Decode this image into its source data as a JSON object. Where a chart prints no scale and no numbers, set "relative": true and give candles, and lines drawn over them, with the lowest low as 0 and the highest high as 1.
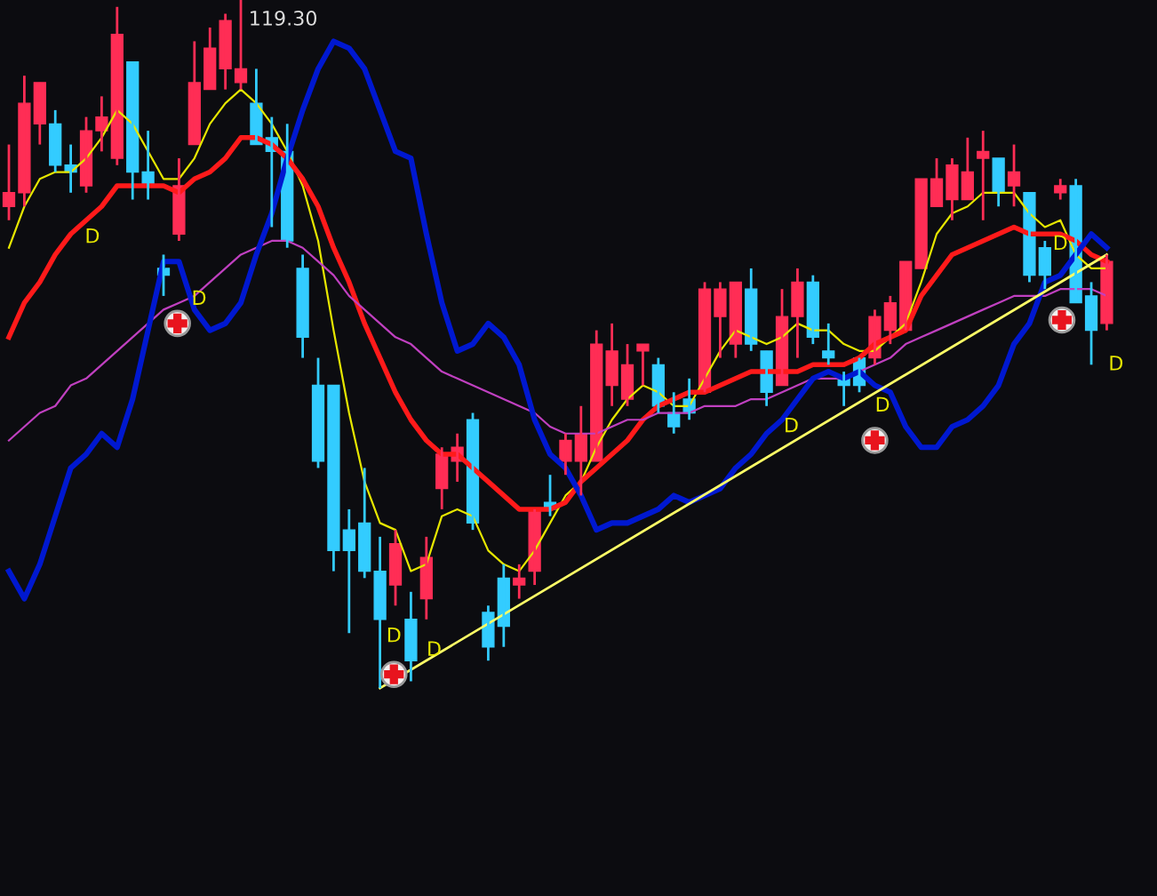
{
  "chart_data": {
    "type": "candlestick",
    "relative": true,
    "categories": [
      null,
      null,
      null,
      null,
      null,
      null,
      null,
      null,
      null,
      null,
      null,
      null,
      null,
      null,
      null,
      null,
      null,
      null,
      null,
      null,
      null,
      null,
      null,
      null,
      null,
      null,
      null,
      null,
      null,
      null,
      null,
      null,
      null,
      null,
      null,
      null,
      null,
      null,
      null,
      null,
      null,
      null,
      null,
      null,
      null,
      null,
      null,
      null,
      null,
      null,
      null,
      null,
      null,
      null,
      null,
      null,
      null,
      null,
      null,
      null,
      null,
      null,
      null,
      null,
      null,
      null,
      null,
      null,
      null,
      null,
      null,
      null
    ],
    "ohlc": [
      [
        0.7,
        0.79,
        0.68,
        0.72
      ],
      [
        0.72,
        0.89,
        0.7,
        0.85
      ],
      [
        0.82,
        0.88,
        0.79,
        0.88
      ],
      [
        0.82,
        0.84,
        0.75,
        0.76
      ],
      [
        0.76,
        0.79,
        0.72,
        0.75
      ],
      [
        0.73,
        0.83,
        0.72,
        0.81
      ],
      [
        0.81,
        0.86,
        0.78,
        0.83
      ],
      [
        0.77,
        0.99,
        0.76,
        0.95
      ],
      [
        0.91,
        0.91,
        0.71,
        0.75
      ],
      [
        0.75,
        0.81,
        0.71,
        0.73
      ],
      [
        0.61,
        0.63,
        0.57,
        0.6
      ],
      [
        0.66,
        0.77,
        0.65,
        0.73
      ],
      [
        0.79,
        0.94,
        0.79,
        0.88
      ],
      [
        0.87,
        0.96,
        0.87,
        0.93
      ],
      [
        0.9,
        0.98,
        0.87,
        0.97
      ],
      [
        0.88,
        1,
        0.87,
        0.9
      ],
      [
        0.85,
        0.9,
        0.79,
        0.79
      ],
      [
        0.8,
        0.83,
        0.67,
        0.78
      ],
      [
        0.78,
        0.82,
        0.64,
        0.65
      ],
      [
        0.61,
        0.63,
        0.48,
        0.51
      ],
      [
        0.44,
        0.48,
        0.32,
        0.33
      ],
      [
        0.44,
        0.44,
        0.17,
        0.2
      ],
      [
        0.23,
        0.26,
        0.08,
        0.2
      ],
      [
        0.24,
        0.32,
        0.16,
        0.17
      ],
      [
        0.17,
        0.22,
        0,
        0.1
      ],
      [
        0.15,
        0.23,
        0.12,
        0.21
      ],
      [
        0.1,
        0.14,
        0.01,
        0.04
      ],
      [
        0.13,
        0.22,
        0.1,
        0.19
      ],
      [
        0.29,
        0.35,
        0.26,
        0.34
      ],
      [
        0.33,
        0.37,
        0.3,
        0.35
      ],
      [
        0.39,
        0.4,
        0.23,
        0.24
      ],
      [
        0.11,
        0.12,
        0.04,
        0.06
      ],
      [
        0.16,
        0.18,
        0.06,
        0.09
      ],
      [
        0.15,
        0.18,
        0.13,
        0.16
      ],
      [
        0.17,
        0.26,
        0.15,
        0.26
      ],
      [
        0.27,
        0.31,
        0.25,
        0.26
      ],
      [
        0.33,
        0.37,
        0.31,
        0.36
      ],
      [
        0.33,
        0.41,
        0.28,
        0.37
      ],
      [
        0.33,
        0.52,
        0.33,
        0.5
      ],
      [
        0.44,
        0.53,
        0.41,
        0.49
      ],
      [
        0.42,
        0.5,
        0.41,
        0.47
      ],
      [
        0.49,
        0.5,
        0.44,
        0.5
      ],
      [
        0.47,
        0.48,
        0.4,
        0.41
      ],
      [
        0.4,
        0.43,
        0.37,
        0.38
      ],
      [
        0.42,
        0.45,
        0.39,
        0.4
      ],
      [
        0.43,
        0.59,
        0.43,
        0.58
      ],
      [
        0.54,
        0.59,
        0.48,
        0.58
      ],
      [
        0.5,
        0.59,
        0.48,
        0.59
      ],
      [
        0.58,
        0.61,
        0.49,
        0.5
      ],
      [
        0.49,
        0.49,
        0.41,
        0.43
      ],
      [
        0.44,
        0.58,
        0.44,
        0.54
      ],
      [
        0.54,
        0.61,
        0.48,
        0.59
      ],
      [
        0.59,
        0.6,
        0.5,
        0.51
      ],
      [
        0.49,
        0.53,
        0.47,
        0.48
      ],
      [
        0.45,
        0.46,
        0.41,
        0.44
      ],
      [
        0.48,
        0.48,
        0.43,
        0.44
      ],
      [
        0.48,
        0.55,
        0.47,
        0.54
      ],
      [
        0.52,
        0.57,
        0.5,
        0.56
      ],
      [
        0.52,
        0.62,
        0.52,
        0.62
      ],
      [
        0.61,
        0.74,
        0.61,
        0.74
      ],
      [
        0.7,
        0.77,
        0.7,
        0.74
      ],
      [
        0.71,
        0.77,
        0.68,
        0.76
      ],
      [
        0.71,
        0.8,
        0.71,
        0.75
      ],
      [
        0.77,
        0.81,
        0.68,
        0.78
      ],
      [
        0.77,
        0.77,
        0.7,
        0.72
      ],
      [
        0.73,
        0.79,
        0.7,
        0.75
      ],
      [
        0.72,
        0.72,
        0.59,
        0.6
      ],
      [
        0.64,
        0.65,
        0.58,
        0.6
      ],
      [
        0.72,
        0.74,
        0.71,
        0.73
      ],
      [
        0.73,
        0.74,
        0.56,
        0.56
      ],
      [
        0.57,
        0.59,
        0.47,
        0.52
      ],
      [
        0.53,
        0.63,
        0.52,
        0.62
      ]
    ],
    "series": [
      {
        "type": "line",
        "color": "#e6e600",
        "values": [
          0.64,
          0.7,
          0.74,
          0.75,
          0.75,
          0.77,
          0.8,
          0.84,
          0.82,
          0.78,
          0.74,
          0.74,
          0.77,
          0.82,
          0.85,
          0.87,
          0.85,
          0.82,
          0.78,
          0.73,
          0.65,
          0.52,
          0.4,
          0.3,
          0.24,
          0.23,
          0.17,
          0.18,
          0.25,
          0.26,
          0.25,
          0.2,
          0.18,
          0.17,
          0.2,
          0.24,
          0.28,
          0.3,
          0.35,
          0.39,
          0.42,
          0.44,
          0.43,
          0.41,
          0.41,
          0.45,
          0.49,
          0.52,
          0.51,
          0.5,
          0.51,
          0.53,
          0.52,
          0.52,
          0.5,
          0.49,
          0.49,
          0.51,
          0.53,
          0.59,
          0.66,
          0.69,
          0.7,
          0.72,
          0.72,
          0.72,
          0.69,
          0.67,
          0.68,
          0.63,
          0.61,
          0.61
        ]
      },
      {
        "type": "line",
        "color": "#ff1a1a",
        "values": [
          0.51,
          0.56,
          0.59,
          0.63,
          0.66,
          0.68,
          0.7,
          0.73,
          0.73,
          0.73,
          0.73,
          0.72,
          0.74,
          0.75,
          0.77,
          0.8,
          0.8,
          0.79,
          0.77,
          0.74,
          0.7,
          0.64,
          0.59,
          0.53,
          0.48,
          0.43,
          0.39,
          0.36,
          0.34,
          0.34,
          0.32,
          0.3,
          0.28,
          0.26,
          0.26,
          0.26,
          0.27,
          0.3,
          0.32,
          0.34,
          0.36,
          0.39,
          0.41,
          0.42,
          0.43,
          0.43,
          0.44,
          0.45,
          0.46,
          0.46,
          0.46,
          0.46,
          0.47,
          0.47,
          0.47,
          0.48,
          0.5,
          0.51,
          0.52,
          0.57,
          0.6,
          0.63,
          0.64,
          0.65,
          0.66,
          0.67,
          0.66,
          0.66,
          0.66,
          0.65,
          0.63,
          0.62
        ]
      },
      {
        "type": "line",
        "color": "#c040c0",
        "values": [
          0.36,
          0.38,
          0.4,
          0.41,
          0.44,
          0.45,
          0.47,
          0.49,
          0.51,
          0.53,
          0.55,
          0.56,
          0.57,
          0.59,
          0.61,
          0.63,
          0.64,
          0.65,
          0.65,
          0.64,
          0.62,
          0.6,
          0.57,
          0.55,
          0.53,
          0.51,
          0.5,
          0.48,
          0.46,
          0.45,
          0.44,
          0.43,
          0.42,
          0.41,
          0.4,
          0.38,
          0.37,
          0.37,
          0.37,
          0.38,
          0.39,
          0.39,
          0.4,
          0.4,
          0.4,
          0.41,
          0.41,
          0.41,
          0.42,
          0.42,
          0.43,
          0.44,
          0.45,
          0.45,
          0.45,
          0.46,
          0.47,
          0.48,
          0.5,
          0.51,
          0.52,
          0.53,
          0.54,
          0.55,
          0.56,
          0.57,
          0.57,
          0.57,
          0.58,
          0.58,
          0.58,
          0.57
        ]
      },
      {
        "type": "line",
        "color": "#0018d0",
        "values": [
          0.17,
          0.13,
          0.18,
          0.25,
          0.32,
          0.34,
          0.37,
          0.35,
          0.42,
          0.52,
          0.62,
          0.62,
          0.55,
          0.52,
          0.53,
          0.56,
          0.63,
          0.69,
          0.77,
          0.84,
          0.9,
          0.94,
          0.93,
          0.9,
          0.84,
          0.78,
          0.77,
          0.66,
          0.56,
          0.49,
          0.5,
          0.53,
          0.51,
          0.47,
          0.39,
          0.34,
          0.32,
          0.28,
          0.23,
          0.24,
          0.24,
          0.25,
          0.26,
          0.28,
          0.27,
          0.28,
          0.29,
          0.32,
          0.34,
          0.37,
          0.39,
          0.42,
          0.45,
          0.46,
          0.45,
          0.46,
          0.44,
          0.43,
          0.38,
          0.35,
          0.35,
          0.38,
          0.39,
          0.41,
          0.44,
          0.5,
          0.53,
          0.59,
          0.6,
          0.63,
          0.66,
          0.64
        ]
      },
      {
        "type": "line",
        "color": "#ffff66",
        "values": [
          null,
          null,
          null,
          null,
          null,
          null,
          null,
          null,
          null,
          null,
          null,
          null,
          null,
          null,
          null,
          null,
          null,
          null,
          null,
          null,
          null,
          null,
          null,
          null,
          0.0,
          null,
          null,
          null,
          null,
          null,
          null,
          null,
          null,
          null,
          null,
          null,
          null,
          null,
          null,
          null,
          null,
          null,
          null,
          null,
          null,
          null,
          null,
          null,
          null,
          null,
          null,
          null,
          null,
          null,
          null,
          null,
          null,
          null,
          null,
          null,
          null,
          null,
          null,
          null,
          null,
          null,
          null,
          null,
          null,
          null,
          null,
          0.63
        ]
      }
    ],
    "annotations": [
      "119.30",
      "D",
      "D",
      "D",
      "D",
      "D",
      "D",
      "D",
      "D"
    ]
  }
}
